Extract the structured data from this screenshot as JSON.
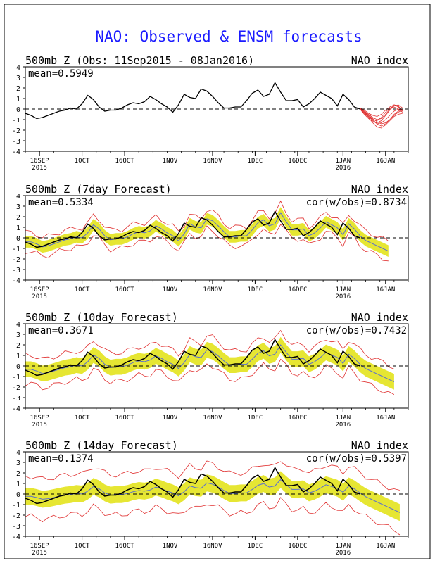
{
  "figure_title": "NAO: Observed & ENSM forecasts",
  "colors": {
    "title": "#1a1aff",
    "observed": "#000000",
    "ensemble_spread": "#e6e633",
    "ensemble_mean": "#5a6fd0",
    "ensemble_extremes": "#e03030",
    "axis": "#000000"
  },
  "chart_data": [
    {
      "type": "line",
      "title": "500mb Z (Obs: 11Sep2015 - 08Jan2016)",
      "right_label": "NAO index",
      "stat_label": "mean=0.5949",
      "cor_label": "",
      "ylim": [
        -4,
        4
      ],
      "yticks": [
        "4",
        "3",
        "2",
        "1",
        "0",
        "-1",
        "-2",
        "-3",
        "-4"
      ],
      "xticks": [
        {
          "label": "16SEP",
          "sub": "2015",
          "day": 5
        },
        {
          "label": "10CT",
          "sub": "",
          "day": 20
        },
        {
          "label": "16OCT",
          "sub": "",
          "day": 35
        },
        {
          "label": "1NOV",
          "sub": "",
          "day": 51
        },
        {
          "label": "16NOV",
          "sub": "",
          "day": 66
        },
        {
          "label": "1DEC",
          "sub": "",
          "day": 81
        },
        {
          "label": "16DEC",
          "sub": "",
          "day": 96
        },
        {
          "label": "1JAN",
          "sub": "2016",
          "day": 112
        },
        {
          "label": "16JAN",
          "sub": "",
          "day": 127
        }
      ],
      "observed": [
        -0.4,
        -0.6,
        -0.9,
        -0.8,
        -0.6,
        -0.4,
        -0.2,
        -0.1,
        0.1,
        0.0,
        0.5,
        1.3,
        0.9,
        0.2,
        -0.2,
        -0.1,
        -0.1,
        0.1,
        0.4,
        0.6,
        0.5,
        0.7,
        1.2,
        0.9,
        0.5,
        0.2,
        -0.3,
        0.4,
        1.4,
        1.1,
        1.0,
        1.9,
        1.7,
        1.2,
        0.6,
        0.1,
        0.1,
        0.2,
        0.2,
        0.8,
        1.5,
        1.8,
        1.2,
        1.4,
        2.5,
        1.6,
        0.8,
        0.8,
        0.9,
        0.2,
        0.5,
        1.0,
        1.6,
        1.3,
        1.0,
        0.3,
        1.4,
        0.9,
        0.2,
        0.0
      ],
      "forecast_members": [
        [
          0.1,
          -0.3,
          -0.6,
          -1.0,
          -1.4,
          -1.6,
          -1.4,
          -1.0,
          -0.5,
          -0.2,
          0.0
        ],
        [
          0.0,
          -0.5,
          -0.9,
          -1.2,
          -1.3,
          -1.1,
          -0.6,
          -0.1,
          0.3,
          0.4,
          0.1
        ],
        [
          0.1,
          -0.2,
          -0.5,
          -0.8,
          -1.0,
          -0.9,
          -0.5,
          0.0,
          0.4,
          0.3,
          -0.2
        ],
        [
          0.0,
          -0.4,
          -0.8,
          -1.3,
          -1.7,
          -1.8,
          -1.5,
          -1.1,
          -0.7,
          -0.5,
          -0.4
        ],
        [
          0.1,
          -0.1,
          -0.4,
          -0.6,
          -0.7,
          -0.5,
          -0.1,
          0.2,
          0.4,
          0.2,
          -0.1
        ],
        [
          0.0,
          -0.3,
          -0.7,
          -1.1,
          -1.4,
          -1.3,
          -1.0,
          -0.6,
          -0.2,
          0.0,
          -0.1
        ],
        [
          0.1,
          -0.2,
          -0.6,
          -0.9,
          -1.2,
          -1.4,
          -1.3,
          -1.0,
          -0.6,
          -0.3,
          -0.1
        ],
        [
          0.0,
          -0.4,
          -0.7,
          -1.0,
          -1.1,
          -0.8,
          -0.3,
          0.1,
          0.2,
          0.0,
          -0.3
        ]
      ]
    },
    {
      "type": "area",
      "title": "500mb Z (7day Forecast)",
      "right_label": "NAO index",
      "stat_label": "mean=0.5334",
      "cor_label": "cor(w/obs)=0.8734",
      "ylim": [
        -4,
        4
      ],
      "yticks": [
        "4",
        "3",
        "2",
        "1",
        "0",
        "-1",
        "-2",
        "-3",
        "-4"
      ],
      "xticks": [
        {
          "label": "16SEP",
          "sub": "2015",
          "day": 5
        },
        {
          "label": "10CT",
          "sub": "",
          "day": 20
        },
        {
          "label": "16OCT",
          "sub": "",
          "day": 35
        },
        {
          "label": "1NOV",
          "sub": "",
          "day": 51
        },
        {
          "label": "16NOV",
          "sub": "",
          "day": 66
        },
        {
          "label": "1DEC",
          "sub": "",
          "day": 81
        },
        {
          "label": "16DEC",
          "sub": "",
          "day": 96
        },
        {
          "label": "1JAN",
          "sub": "2016",
          "day": 112
        },
        {
          "label": "16JAN",
          "sub": "",
          "day": 127
        }
      ],
      "spread": 0.55,
      "extreme_spread": 0.9,
      "mean_scale": 0.95,
      "observed_points": 60,
      "forecast_points": 65
    },
    {
      "type": "area",
      "title": "500mb Z (10day Forecast)",
      "right_label": "NAO index",
      "stat_label": "mean=0.3671",
      "cor_label": "cor(w/obs)=0.7432",
      "ylim": [
        -4,
        4
      ],
      "yticks": [
        "4",
        "3",
        "2",
        "1",
        "0",
        "-1",
        "-2",
        "-3",
        "-4"
      ],
      "xticks": [
        {
          "label": "16SEP",
          "sub": "2015",
          "day": 5
        },
        {
          "label": "10CT",
          "sub": "",
          "day": 20
        },
        {
          "label": "16OCT",
          "sub": "",
          "day": 35
        },
        {
          "label": "1NOV",
          "sub": "",
          "day": 51
        },
        {
          "label": "16NOV",
          "sub": "",
          "day": 66
        },
        {
          "label": "1DEC",
          "sub": "",
          "day": 81
        },
        {
          "label": "16DEC",
          "sub": "",
          "day": 96
        },
        {
          "label": "1JAN",
          "sub": "2016",
          "day": 112
        },
        {
          "label": "16JAN",
          "sub": "",
          "day": 127
        }
      ],
      "spread": 0.75,
      "extreme_spread": 1.35,
      "mean_scale": 0.8,
      "observed_points": 60,
      "forecast_points": 66
    },
    {
      "type": "area",
      "title": "500mb Z (14day Forecast)",
      "right_label": "NAO index",
      "stat_label": "mean=0.1374",
      "cor_label": "cor(w/obs)=0.5397",
      "ylim": [
        -4,
        4
      ],
      "yticks": [
        "4",
        "3",
        "2",
        "1",
        "0",
        "-1",
        "-2",
        "-3",
        "-4"
      ],
      "xticks": [
        {
          "label": "16SEP",
          "sub": "2015",
          "day": 5
        },
        {
          "label": "10CT",
          "sub": "",
          "day": 20
        },
        {
          "label": "16OCT",
          "sub": "",
          "day": 35
        },
        {
          "label": "1NOV",
          "sub": "",
          "day": 51
        },
        {
          "label": "16NOV",
          "sub": "",
          "day": 66
        },
        {
          "label": "1DEC",
          "sub": "",
          "day": 81
        },
        {
          "label": "16DEC",
          "sub": "",
          "day": 96
        },
        {
          "label": "1JAN",
          "sub": "2016",
          "day": 112
        },
        {
          "label": "16JAN",
          "sub": "",
          "day": 127
        }
      ],
      "spread": 0.8,
      "extreme_spread": 1.9,
      "mean_scale": 0.55,
      "observed_points": 60,
      "forecast_points": 67
    }
  ]
}
